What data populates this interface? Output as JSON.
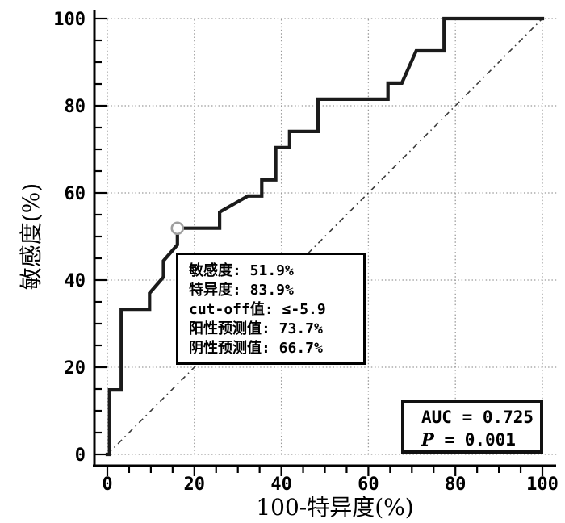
{
  "chart_data": {
    "type": "line",
    "subtype": "roc-step-curve",
    "title": "",
    "xlabel": "100-特异度(%)",
    "ylabel": "敏感度(%)",
    "xlim": [
      0,
      100
    ],
    "ylim": [
      0,
      100
    ],
    "x_ticks": [
      0,
      20,
      40,
      60,
      80,
      100
    ],
    "y_ticks": [
      0,
      20,
      40,
      60,
      80,
      100
    ],
    "minor_tick_step": 5,
    "grid": "dotted-major",
    "colors": {
      "curve": "#1b1b1b",
      "grid": "#9a9a9a",
      "reference_line": "#3a3a3a",
      "marker_stroke": "#9f9f9f",
      "axis": "#000000",
      "background": "#ffffff"
    },
    "series": [
      {
        "name": "ROC curve",
        "style": "thick-solid-step",
        "points": [
          [
            0,
            0
          ],
          [
            0.5,
            0
          ],
          [
            0.5,
            14.8
          ],
          [
            3.2,
            14.8
          ],
          [
            3.2,
            33.3
          ],
          [
            9.7,
            33.3
          ],
          [
            9.7,
            37.0
          ],
          [
            12.9,
            40.7
          ],
          [
            12.9,
            44.4
          ],
          [
            16.1,
            48.1
          ],
          [
            16.1,
            51.9
          ],
          [
            25.8,
            51.9
          ],
          [
            25.8,
            55.6
          ],
          [
            32.3,
            59.3
          ],
          [
            35.5,
            59.3
          ],
          [
            35.5,
            63.0
          ],
          [
            38.7,
            63.0
          ],
          [
            38.7,
            70.4
          ],
          [
            41.9,
            70.4
          ],
          [
            41.9,
            74.1
          ],
          [
            48.4,
            74.1
          ],
          [
            48.4,
            81.5
          ],
          [
            64.5,
            81.5
          ],
          [
            64.5,
            85.2
          ],
          [
            67.7,
            85.2
          ],
          [
            71.0,
            92.6
          ],
          [
            77.4,
            92.6
          ],
          [
            77.4,
            100
          ],
          [
            100,
            100
          ]
        ]
      },
      {
        "name": "reference diagonal",
        "style": "dash-dot",
        "points": [
          [
            0,
            0
          ],
          [
            100,
            100
          ]
        ]
      }
    ],
    "marked_point": {
      "x": 16.1,
      "y": 51.9,
      "style": "open-circle"
    }
  },
  "annotation_box": {
    "lines": [
      "敏感度: 51.9%",
      "特异度: 83.9%",
      "cut-off值: ≤-5.9",
      "阳性预测值: 73.7%",
      "阴性预测值: 66.7%"
    ]
  },
  "auc_box": {
    "auc_line": "AUC = 0.725",
    "p_symbol": "P",
    "p_value": "= 0.001"
  }
}
